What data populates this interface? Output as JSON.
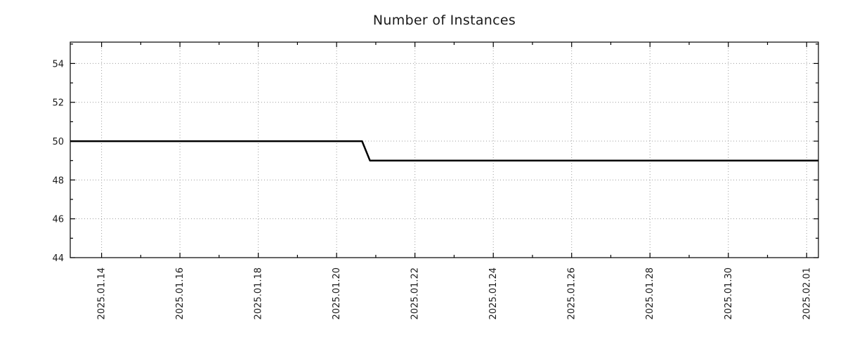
{
  "chart_data": {
    "type": "line",
    "title": "Number of Instances",
    "xlabel": "",
    "ylabel": "",
    "x_tick_labels": [
      "2025.01.14",
      "2025.01.16",
      "2025.01.18",
      "2025.01.20",
      "2025.01.22",
      "2025.01.24",
      "2025.01.26",
      "2025.01.28",
      "2025.01.30",
      "2025.02.01"
    ],
    "x_tick_values": [
      14,
      16,
      18,
      20,
      22,
      24,
      26,
      28,
      30,
      32
    ],
    "x_range": [
      13.2,
      32.3
    ],
    "y_ticks": [
      44,
      46,
      48,
      50,
      52,
      54
    ],
    "y_range": [
      44,
      55.1
    ],
    "grid": "dotted",
    "legend": "none",
    "line_color": "#000000",
    "grid_color": "#9c9c9c",
    "series": [
      {
        "name": "instances",
        "points": [
          [
            13.2,
            50
          ],
          [
            20.65,
            50
          ],
          [
            20.85,
            49
          ],
          [
            32.3,
            49
          ]
        ]
      }
    ]
  }
}
